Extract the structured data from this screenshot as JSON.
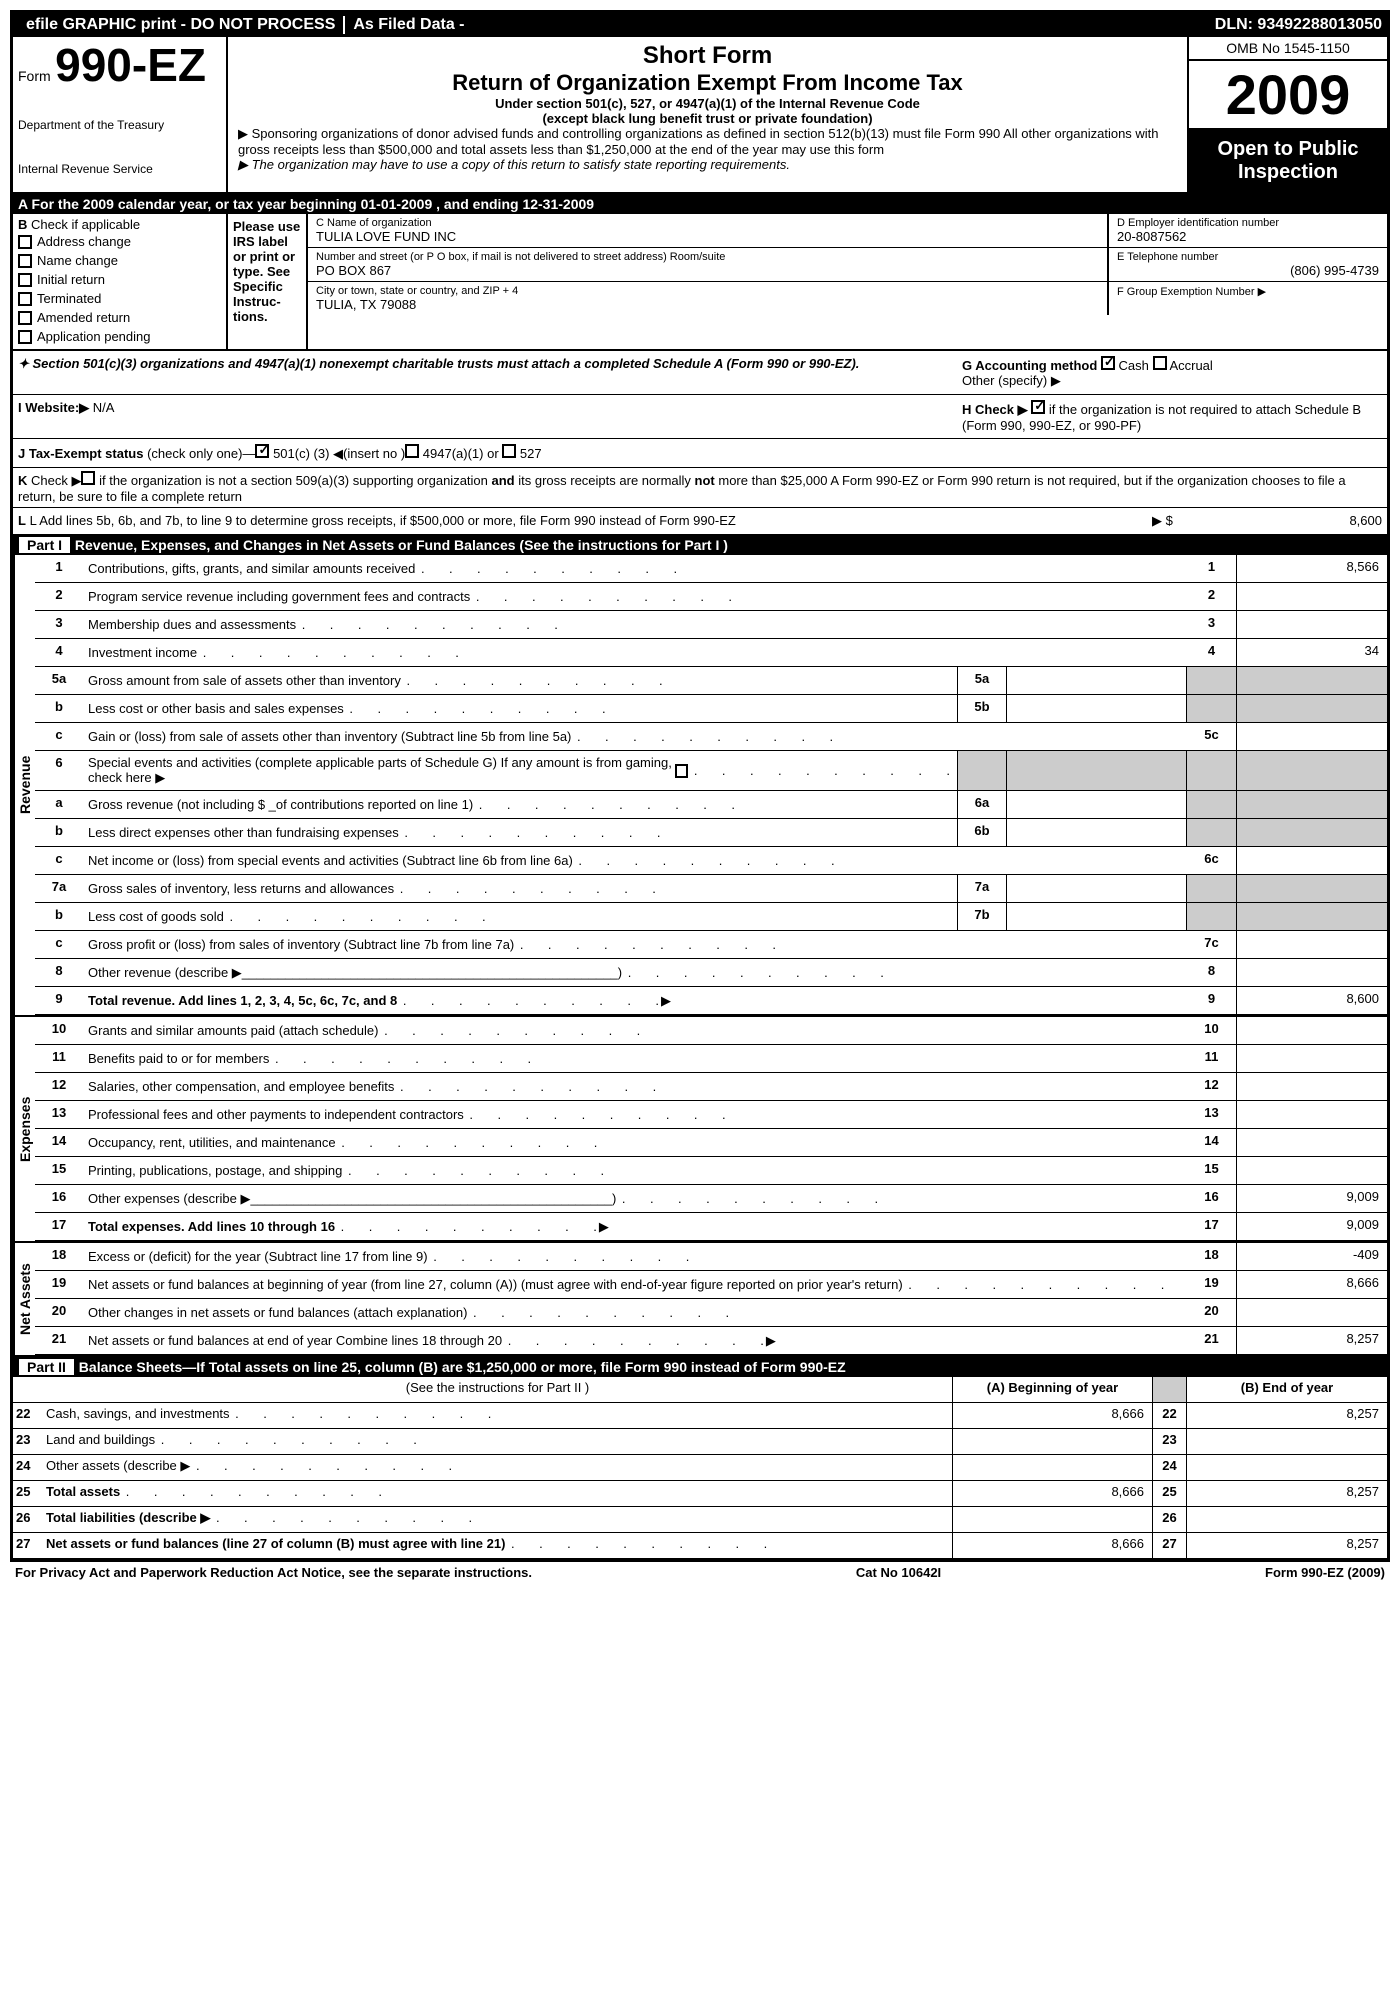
{
  "topbar": {
    "efile": "efile GRAPHIC print - DO NOT PROCESS",
    "asfiled": "As Filed Data -",
    "dln": "DLN: 93492288013050"
  },
  "header": {
    "form_prefix": "Form",
    "form_num": "990-EZ",
    "dept1": "Department of the Treasury",
    "dept2": "Internal Revenue Service",
    "title1": "Short Form",
    "title2": "Return of Organization Exempt From Income Tax",
    "sub1": "Under section 501(c), 527, or 4947(a)(1) of the Internal Revenue Code",
    "sub2": "(except black lung benefit trust or private foundation)",
    "note1": "▶ Sponsoring organizations of donor advised funds and controlling organizations as defined in section 512(b)(13) must file Form 990  All other organizations with gross receipts less than $500,000 and total assets less than $1,250,000 at the end of the year may use this form",
    "note2": "▶ The organization may have to use a copy of this return to satisfy state reporting requirements.",
    "omb": "OMB No  1545-1150",
    "year": "2009",
    "open": "Open to Public Inspection"
  },
  "sectionA": "A  For the 2009 calendar year, or tax year beginning 01-01-2009                        , and ending 12-31-2009",
  "colB": {
    "label": "B",
    "hint": "Check if applicable",
    "items": [
      "Address change",
      "Name change",
      "Initial return",
      "Terminated",
      "Amended return",
      "Application pending"
    ]
  },
  "instr": "Please use IRS label or print or type. See Specific Instruc-tions.",
  "orgC": {
    "label": "C Name of organization",
    "name": "TULIA LOVE FUND INC",
    "addr_label": "Number and street (or P O  box, if mail is not delivered to street address) Room/suite",
    "addr": "PO BOX 867",
    "city_label": "City or town, state or country, and ZIP + 4",
    "city": "TULIA, TX  79088"
  },
  "colD": {
    "label": "D Employer identification number",
    "val": "20-8087562"
  },
  "colE": {
    "label": "E Telephone number",
    "val": "(806) 995-4739"
  },
  "colF": {
    "label": "F Group Exemption Number  ▶"
  },
  "sec501": "✦ Section 501(c)(3) organizations and 4947(a)(1) nonexempt charitable trusts must attach a completed Schedule A (Form 990 or 990-EZ).",
  "colG": {
    "label": "G Accounting method",
    "cash": "Cash",
    "accrual": "Accrual",
    "other": "Other (specify) ▶"
  },
  "rowI": {
    "label": "I Website:▶",
    "val": "N/A"
  },
  "rowH": {
    "label": "H  Check ▶",
    "text": "if the organization is not required to attach Schedule B (Form 990, 990-EZ, or 990-PF)"
  },
  "rowJ": "J Tax-Exempt status (check only one)—     501(c) (3) ◀(insert no )     4947(a)(1) or      527",
  "rowK": "K Check ▶     if the organization is not a section 509(a)(3) supporting organization and its gross receipts are normally not more than $25,000  A Form 990-EZ or Form 990 return is not required, but if the organization chooses to file a return, be sure to file a complete return",
  "rowL": {
    "text": "L Add lines 5b, 6b, and 7b, to line 9 to determine gross receipts, if $500,000 or more, file Form 990 instead of Form 990-EZ",
    "arrow": "▶ $",
    "val": "8,600"
  },
  "part1": {
    "title": "Revenue, Expenses, and Changes in Net Assets or Fund Balances (See the instructions for Part I )",
    "revenue_label": "Revenue",
    "expenses_label": "Expenses",
    "netassets_label": "Net Assets",
    "lines": {
      "1": {
        "desc": "Contributions, gifts, grants, and similar amounts received",
        "val": "8,566"
      },
      "2": {
        "desc": "Program service revenue including government fees and contracts",
        "val": ""
      },
      "3": {
        "desc": "Membership dues and assessments",
        "val": ""
      },
      "4": {
        "desc": "Investment income",
        "val": "34"
      },
      "5a": {
        "desc": "Gross amount from sale of assets other than inventory"
      },
      "5b": {
        "desc": "Less  cost or other basis and sales expenses"
      },
      "5c": {
        "desc": "Gain or (loss) from sale of assets other than inventory (Subtract line 5b from line 5a)",
        "val": ""
      },
      "6": {
        "desc": "Special events and activities (complete applicable parts of Schedule G)  If any amount is from gaming, check here  ▶"
      },
      "6a": {
        "desc": "Gross revenue (not including $ _of contributions reported on line 1)"
      },
      "6b": {
        "desc": "Less  direct expenses other than fundraising expenses"
      },
      "6c": {
        "desc": "Net income or (loss) from special events and activities (Subtract line 6b from line 6a)",
        "val": ""
      },
      "7a": {
        "desc": "Gross sales of inventory, less returns and allowances"
      },
      "7b": {
        "desc": "Less  cost of goods sold"
      },
      "7c": {
        "desc": "Gross profit or (loss) from sales of inventory (Subtract line 7b from line 7a)",
        "val": ""
      },
      "8": {
        "desc": "Other revenue (describe ▶",
        "val": ""
      },
      "9": {
        "desc": "Total revenue. Add lines 1, 2, 3, 4, 5c, 6c, 7c, and 8",
        "val": "8,600",
        "bold": true
      },
      "10": {
        "desc": "Grants and similar amounts paid (attach schedule)",
        "val": ""
      },
      "11": {
        "desc": "Benefits paid to or for members",
        "val": ""
      },
      "12": {
        "desc": "Salaries, other compensation, and employee benefits",
        "val": ""
      },
      "13": {
        "desc": "Professional fees and other payments to independent contractors",
        "val": ""
      },
      "14": {
        "desc": "Occupancy, rent, utilities, and maintenance",
        "val": ""
      },
      "15": {
        "desc": "Printing, publications, postage, and shipping",
        "val": ""
      },
      "16": {
        "desc": "Other expenses (describe ▶",
        "val": "9,009"
      },
      "17": {
        "desc": "Total expenses. Add lines 10 through 16",
        "val": "9,009",
        "bold": true
      },
      "18": {
        "desc": "Excess or (deficit) for the year (Subtract line 17 from line 9)",
        "val": "-409"
      },
      "19": {
        "desc": "Net assets or fund balances at beginning of year (from line 27, column (A)) (must agree with end-of-year figure reported on prior year's return)",
        "val": "8,666"
      },
      "20": {
        "desc": "Other changes in net assets or fund balances (attach explanation)",
        "val": ""
      },
      "21": {
        "desc": "Net assets or fund balances at end of year  Combine lines 18 through 20",
        "val": "8,257"
      }
    }
  },
  "part2": {
    "title": "Balance Sheets—If Total assets on line 25, column (B) are $1,250,000 or more, file Form 990 instead of Form 990-EZ",
    "instr": "(See the instructions for Part II )",
    "colA": "(A) Beginning of year",
    "colB": "(B) End of year",
    "rows": [
      {
        "n": "22",
        "desc": "Cash, savings, and investments",
        "a": "8,666",
        "b": "8,257"
      },
      {
        "n": "23",
        "desc": "Land and buildings",
        "a": "",
        "b": ""
      },
      {
        "n": "24",
        "desc": "Other assets (describe ▶",
        "a": "",
        "b": ""
      },
      {
        "n": "25",
        "desc": "Total assets",
        "a": "8,666",
        "b": "8,257",
        "bold": true
      },
      {
        "n": "26",
        "desc": "Total liabilities (describe ▶",
        "a": "",
        "b": "",
        "bold": true
      },
      {
        "n": "27",
        "desc": "Net assets or fund balances (line 27 of column (B) must agree with line 21)",
        "a": "8,666",
        "b": "8,257",
        "bold": true
      }
    ]
  },
  "footer": {
    "left": "For Privacy Act and Paperwork Reduction Act Notice, see the separate instructions.",
    "mid": "Cat No  10642I",
    "right": "Form 990-EZ (2009)"
  }
}
